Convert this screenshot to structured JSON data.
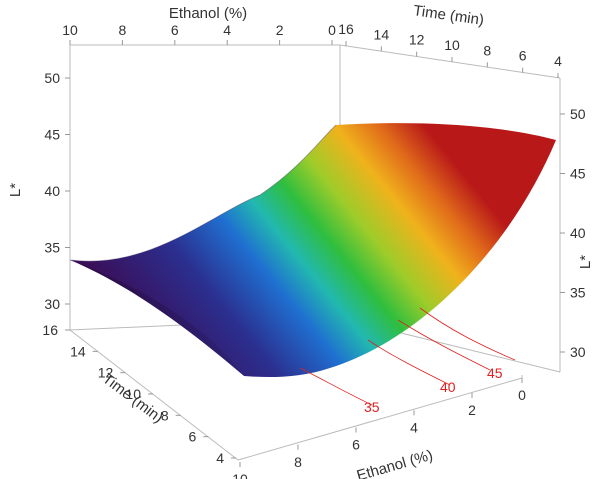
{
  "chart_data": {
    "type": "surface3d",
    "zlabel": "L*",
    "x_axis": {
      "label": "Ethanol (%)",
      "range": [
        0,
        10
      ],
      "ticks": [
        "0",
        "2",
        "4",
        "6",
        "8",
        "10"
      ],
      "front_ticks": [
        "2",
        "4",
        "6",
        "8",
        "10"
      ],
      "top_ticks": [
        "10",
        "8",
        "6",
        "4",
        "2",
        "0"
      ]
    },
    "y_axis": {
      "label": "Time (min)",
      "range": [
        4,
        16
      ],
      "ticks": [
        "4",
        "6",
        "8",
        "10",
        "12",
        "14",
        "16"
      ],
      "left_ticks": [
        "4",
        "6",
        "8",
        "10",
        "12",
        "14",
        "16"
      ],
      "top_ticks": [
        "16",
        "14",
        "12",
        "10",
        "8",
        "6",
        "4"
      ]
    },
    "z_axis": {
      "label": "L*",
      "range": [
        28,
        52
      ],
      "left_ticks": [
        "30",
        "35",
        "40",
        "45",
        "50"
      ],
      "right_ticks": [
        "30",
        "35",
        "40",
        "45",
        "50"
      ],
      "front_right_ticks": [
        "0"
      ]
    },
    "contours": [
      {
        "label": "35"
      },
      {
        "label": "40"
      },
      {
        "label": "45"
      }
    ],
    "contour_color": "#e02020",
    "colormap": [
      "#3a0f5a",
      "#2b2f8f",
      "#1f6fd0",
      "#22b8b0",
      "#2fbe3e",
      "#9dcc2a",
      "#f0b21c",
      "#e06a1a",
      "#b81818"
    ],
    "surface_samples": [
      {
        "ethanol": 10,
        "time": 16,
        "L": 34.0
      },
      {
        "ethanol": 10,
        "time": 4,
        "L": 27.5
      },
      {
        "ethanol": 0,
        "time": 16,
        "L": 49.0
      },
      {
        "ethanol": 0,
        "time": 4,
        "L": 47.5
      }
    ]
  }
}
